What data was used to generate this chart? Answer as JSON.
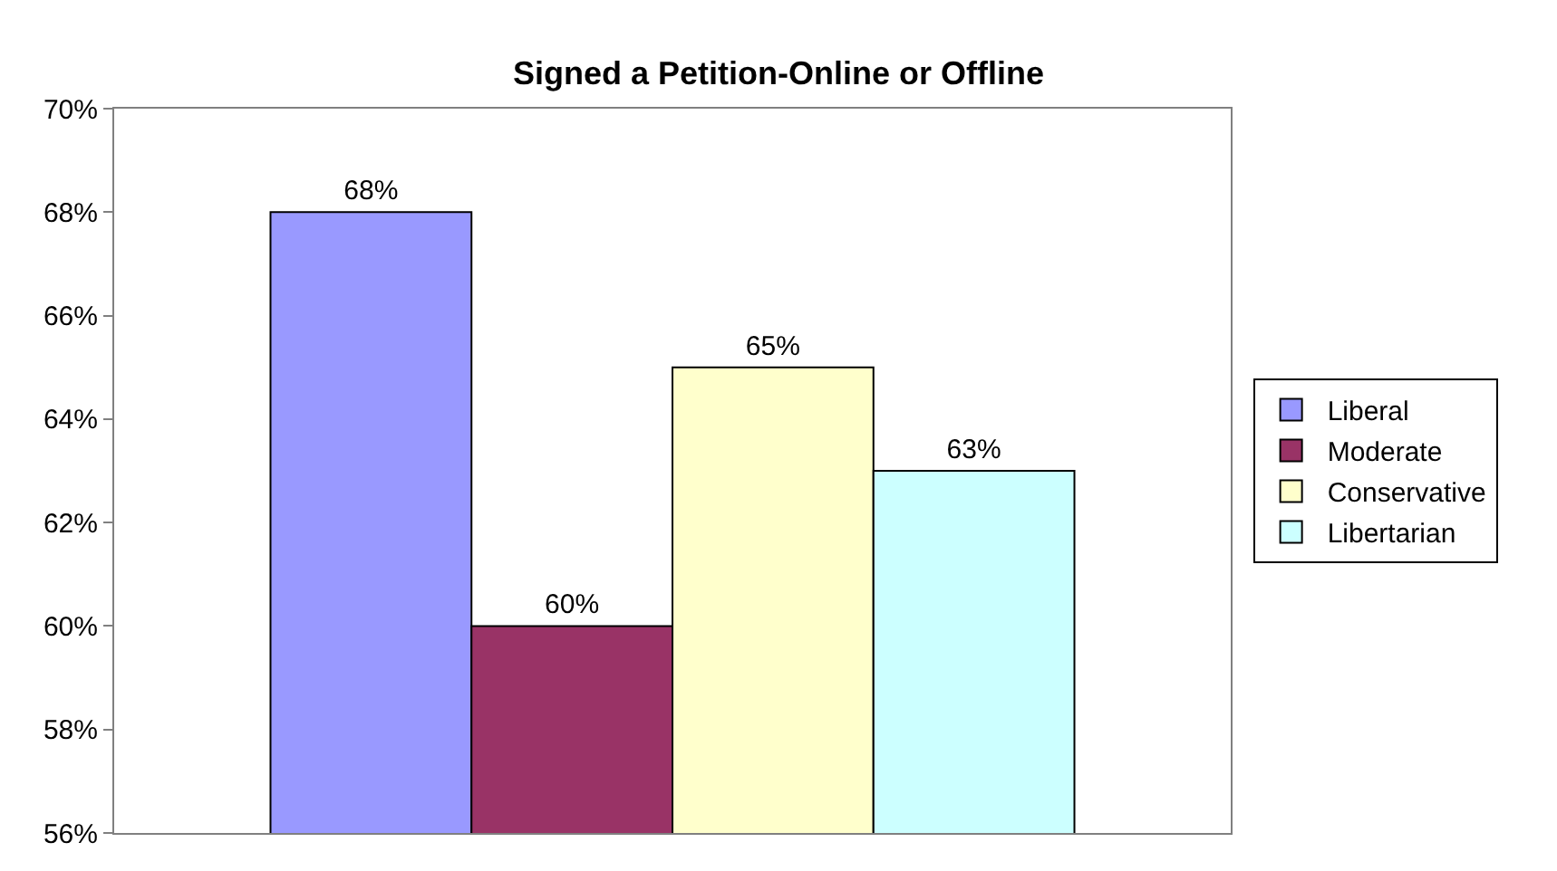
{
  "chart_data": {
    "type": "bar",
    "title": "Signed a Petition-Online or Offline",
    "categories": [
      null
    ],
    "series": [
      {
        "name": "Liberal",
        "color": "#9999ff",
        "values": [
          68
        ],
        "value_labels": [
          "68%"
        ]
      },
      {
        "name": "Moderate",
        "color": "#993366",
        "values": [
          60
        ],
        "value_labels": [
          "60%"
        ]
      },
      {
        "name": "Conservative",
        "color": "#ffffcc",
        "values": [
          65
        ],
        "value_labels": [
          "65%"
        ]
      },
      {
        "name": "Libertarian",
        "color": "#ccffff",
        "values": [
          63
        ],
        "value_labels": [
          "63%"
        ]
      }
    ],
    "ylim": [
      56,
      70
    ],
    "yticks": [
      {
        "value": 56,
        "label": "56%"
      },
      {
        "value": 58,
        "label": "58%"
      },
      {
        "value": 60,
        "label": "60%"
      },
      {
        "value": 62,
        "label": "62%"
      },
      {
        "value": 64,
        "label": "64%"
      },
      {
        "value": 66,
        "label": "66%"
      },
      {
        "value": 68,
        "label": "68%"
      },
      {
        "value": 70,
        "label": "70%"
      }
    ],
    "grid": false,
    "legend": "right"
  }
}
